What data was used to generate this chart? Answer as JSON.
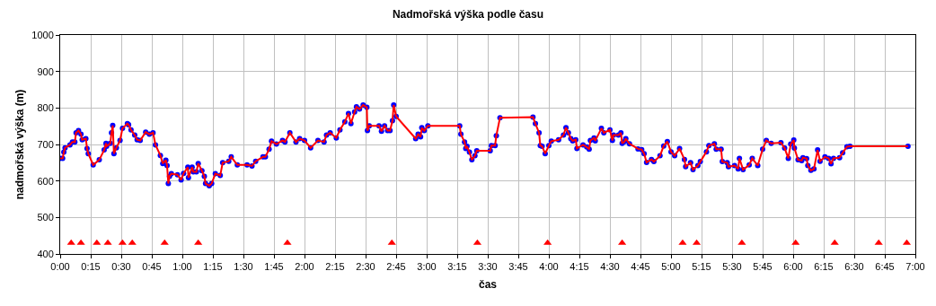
{
  "chart_data": {
    "type": "line",
    "title": "Nadmořská výška podle času",
    "xlabel": "čas",
    "ylabel": "nadmořská výška (m)",
    "xlim": [
      0,
      7
    ],
    "ylim": [
      400,
      1000
    ],
    "xticks": [
      {
        "value": 0,
        "label": "0:00"
      },
      {
        "value": 0.25,
        "label": "0:15"
      },
      {
        "value": 0.5,
        "label": "0:30"
      },
      {
        "value": 0.75,
        "label": "0:45"
      },
      {
        "value": 1,
        "label": "1:00"
      },
      {
        "value": 1.25,
        "label": "1:15"
      },
      {
        "value": 1.5,
        "label": "1:30"
      },
      {
        "value": 1.75,
        "label": "1:45"
      },
      {
        "value": 2,
        "label": "2:00"
      },
      {
        "value": 2.25,
        "label": "2:15"
      },
      {
        "value": 2.5,
        "label": "2:30"
      },
      {
        "value": 2.75,
        "label": "2:45"
      },
      {
        "value": 3,
        "label": "3:00"
      },
      {
        "value": 3.25,
        "label": "3:15"
      },
      {
        "value": 3.5,
        "label": "3:30"
      },
      {
        "value": 3.75,
        "label": "3:45"
      },
      {
        "value": 4,
        "label": "4:00"
      },
      {
        "value": 4.25,
        "label": "4:15"
      },
      {
        "value": 4.5,
        "label": "4:30"
      },
      {
        "value": 4.75,
        "label": "4:45"
      },
      {
        "value": 5,
        "label": "5:00"
      },
      {
        "value": 5.25,
        "label": "5:15"
      },
      {
        "value": 5.5,
        "label": "5:30"
      },
      {
        "value": 5.75,
        "label": "5:45"
      },
      {
        "value": 6,
        "label": "6:00"
      },
      {
        "value": 6.25,
        "label": "6:15"
      },
      {
        "value": 6.5,
        "label": "6:30"
      },
      {
        "value": 6.75,
        "label": "6:45"
      },
      {
        "value": 7,
        "label": "7:00"
      }
    ],
    "yticks": [
      400,
      500,
      600,
      700,
      800,
      900,
      1000
    ],
    "grid": true,
    "series": [
      {
        "type": "line",
        "color": "#ff0000",
        "marker": "circle",
        "line_style": "solid",
        "colors": [
          "#0000ff",
          "#0000ff",
          "#0000ff",
          "#0000ff",
          "#0000ff",
          "#0000ff",
          "#0000ff",
          "#0000ff",
          "#0000ff",
          "#0000ff",
          "#0000ff",
          "#0000ff",
          "#0000ff",
          "#0000ff",
          "#0000ff",
          "#0000ff",
          "#0000ff",
          "#0000ff",
          "#0000ff",
          "#0000ff",
          "#0000ff",
          "#0000ff",
          "#0000ff",
          "#0000ff",
          "#0000ff",
          "#0000ff",
          "#0000ff",
          "#0000ff",
          "#0000ff",
          "#0000ff",
          "#0000ff",
          "#0000ff",
          "#0000ff",
          "#0000ff",
          "#0000ff",
          "#0000ff",
          "#0000ff",
          "#0000ff",
          "#0000ff",
          "#0000ff",
          "#0000ff",
          "#0000ff",
          "#0000ff",
          "#0000ff",
          "#0000ff",
          "#0000ff",
          "#0000ff",
          "#0000ff",
          "#0000ff",
          "#0000ff",
          "#0000ff",
          "#0000ff",
          "#0000ff",
          "#0000ff",
          "#0000ff",
          "#0000ff",
          "#0000ff",
          "#0000ff",
          "#0000ff",
          "#0000ff",
          "#0000ff",
          "#0000ff",
          "#0000ff",
          "#0000ff",
          "#0000ff",
          "#0000ff",
          "#0000ff",
          "#0000ff",
          "#0000ff",
          "#0000ff",
          "#0000ff",
          "#0000ff",
          "#0000ff",
          "#0000ff",
          "#0000ff",
          "#0000ff",
          "#0000ff",
          "#0000ff",
          "#0000ff",
          "#0000ff",
          "#0000ff",
          "#0000ff",
          "#0000ff",
          "#0000ff",
          "#0000ff",
          "#0000ff",
          "#0000ff",
          "#0000ff",
          "#0000ff",
          "#0000ff",
          "#0000ff",
          "#0000ff",
          "#0000ff",
          "#0000ff",
          "#0000ff",
          "#0000ff",
          "#0000ff",
          "#0000ff",
          "#0000ff",
          "#0000ff",
          "#0000ff",
          "#0000ff",
          "#0000ff",
          "#0000ff",
          "#0000ff",
          "#0000ff",
          "#0000ff",
          "#0000ff",
          "#0000ff",
          "#0000ff",
          "#0000ff",
          "#0000ff",
          "#0000ff",
          "#0000ff",
          "#0000ff",
          "#0000ff",
          "#0000ff",
          "#0000ff",
          "#0000ff",
          "#0000ff",
          "#0000ff",
          "#0000ff",
          "#0000ff",
          "#0000ff",
          "#0000ff",
          "#0000ff",
          "#0000ff",
          "#0000ff",
          "#0000ff",
          "#0000ff",
          "#0000ff",
          "#0000ff",
          "#0000ff",
          "#0000ff",
          "#0000ff",
          "#0000ff",
          "#0000ff",
          "#0000ff",
          "#0000ff",
          "#0000ff",
          "#0000ff",
          "#0000ff",
          "#0000ff",
          "#0000ff",
          "#0000ff",
          "#0000ff",
          "#0000ff",
          "#0000ff",
          "#0000ff",
          "#0000ff",
          "#0000ff",
          "#0000ff",
          "#0000ff",
          "#0000ff",
          "#0000ff",
          "#0000ff",
          "#0000ff",
          "#0000ff",
          "#0000ff",
          "#0000ff",
          "#0000ff",
          "#0000ff",
          "#0000ff",
          "#0000ff",
          "#0000ff",
          "#0000ff",
          "#0000ff",
          "#0000ff",
          "#0000ff",
          "#0000ff",
          "#0000ff",
          "#0000ff",
          "#0000ff",
          "#0000ff",
          "#0000ff",
          "#0000ff",
          "#0000ff",
          "#0000ff",
          "#0000ff",
          "#0000ff",
          "#0000ff",
          "#0000ff",
          "#0000ff",
          "#0000ff",
          "#0000ff",
          "#0000ff",
          "#0000ff",
          "#0000ff",
          "#0000ff",
          "#0000ff",
          "#0000ff",
          "#0000ff",
          "#0000ff",
          "#0000ff",
          "#0000ff",
          "#0000ff",
          "#0000ff",
          "#0000ff",
          "#0000ff",
          "#0000ff",
          "#0000ff",
          "#0000ff",
          "#0000ff",
          "#0000ff",
          "#0000ff",
          "#0000ff",
          "#0000ff",
          "#0000ff",
          "#0000ff",
          "#0000ff",
          "#0000ff",
          "#0000ff",
          "#0000ff",
          "#0000ff",
          "#0000ff"
        ],
        "x": [
          0,
          0.02,
          0.03,
          0.04,
          0.08,
          0.1,
          0.12,
          0.13,
          0.15,
          0.17,
          0.18,
          0.21,
          0.22,
          0.23,
          0.27,
          0.32,
          0.36,
          0.375,
          0.38,
          0.41,
          0.42,
          0.43,
          0.44,
          0.46,
          0.49,
          0.51,
          0.55,
          0.56,
          0.58,
          0.61,
          0.63,
          0.655,
          0.7,
          0.73,
          0.76,
          0.78,
          0.82,
          0.84,
          0.865,
          0.875,
          0.885,
          0.895,
          0.91,
          0.96,
          0.99,
          1.01,
          1.045,
          1.05,
          1.08,
          1.09,
          1.115,
          1.13,
          1.16,
          1.18,
          1.19,
          1.22,
          1.24,
          1.27,
          1.31,
          1.33,
          1.38,
          1.4,
          1.45,
          1.53,
          1.57,
          1.6,
          1.66,
          1.68,
          1.71,
          1.73,
          1.77,
          1.82,
          1.84,
          1.88,
          1.93,
          1.96,
          2,
          2.05,
          2.11,
          2.16,
          2.18,
          2.21,
          2.26,
          2.29,
          2.33,
          2.36,
          2.38,
          2.41,
          2.425,
          2.45,
          2.48,
          2.51,
          2.515,
          2.53,
          2.61,
          2.63,
          2.655,
          2.68,
          2.7,
          2.72,
          2.73,
          2.75,
          2.91,
          2.93,
          2.95,
          2.96,
          2.98,
          3.01,
          3.27,
          3.28,
          3.31,
          3.32,
          3.33,
          3.35,
          3.37,
          3.395,
          3.41,
          3.52,
          3.53,
          3.56,
          3.57,
          3.6,
          3.87,
          3.89,
          3.92,
          3.93,
          3.945,
          3.97,
          4,
          4.02,
          4.08,
          4.12,
          4.14,
          4.16,
          4.18,
          4.195,
          4.22,
          4.23,
          4.28,
          4.31,
          4.33,
          4.34,
          4.37,
          4.38,
          4.43,
          4.45,
          4.5,
          4.52,
          4.53,
          4.57,
          4.59,
          4.6,
          4.62,
          4.63,
          4.66,
          4.73,
          4.76,
          4.78,
          4.8,
          4.84,
          4.86,
          4.91,
          4.94,
          4.97,
          5,
          5.03,
          5.07,
          5.11,
          5.12,
          5.16,
          5.18,
          5.22,
          5.24,
          5.29,
          5.31,
          5.355,
          5.37,
          5.41,
          5.42,
          5.46,
          5.47,
          5.52,
          5.55,
          5.56,
          5.59,
          5.64,
          5.665,
          5.71,
          5.75,
          5.78,
          5.82,
          5.9,
          5.93,
          5.96,
          5.98,
          6.005,
          6.01,
          6.04,
          6.07,
          6.08,
          6.11,
          6.12,
          6.145,
          6.17,
          6.2,
          6.22,
          6.26,
          6.29,
          6.31,
          6.33,
          6.38,
          6.405,
          6.44,
          6.465,
          6.94
        ],
        "values": [
          662,
          662,
          679,
          691,
          699,
          707,
          707,
          732,
          738,
          728,
          713,
          716,
          689,
          675,
          644,
          658,
          685,
          703,
          695,
          703,
          732,
          752,
          675,
          691,
          711,
          744,
          757,
          754,
          740,
          726,
          713,
          711,
          734,
          728,
          732,
          699,
          670,
          648,
          657,
          642,
          593,
          613,
          620,
          617,
          603,
          621,
          638,
          609,
          638,
          625,
          625,
          648,
          628,
          613,
          593,
          587,
          593,
          620,
          615,
          650,
          654,
          666,
          644,
          644,
          641,
          654,
          666,
          666,
          687,
          709,
          701,
          711,
          707,
          732,
          707,
          716,
          711,
          691,
          711,
          707,
          726,
          732,
          718,
          740,
          762,
          785,
          757,
          789,
          803,
          797,
          808,
          802,
          738,
          751,
          751,
          736,
          751,
          738,
          738,
          765,
          808,
          777,
          716,
          728,
          721,
          746,
          738,
          751,
          751,
          728,
          707,
          689,
          695,
          679,
          658,
          669,
          683,
          683,
          697,
          697,
          724,
          773,
          775,
          757,
          732,
          697,
          695,
          675,
          697,
          709,
          713,
          726,
          746,
          732,
          716,
          710,
          713,
          689,
          699,
          693,
          687,
          711,
          718,
          710,
          744,
          732,
          740,
          711,
          726,
          726,
          732,
          703,
          708,
          716,
          702,
          688,
          686,
          675,
          651,
          659,
          653,
          669,
          696,
          708,
          680,
          669,
          689,
          659,
          639,
          650,
          631,
          642,
          653,
          680,
          697,
          702,
          687,
          687,
          653,
          650,
          639,
          642,
          633,
          662,
          631,
          644,
          662,
          642,
          687,
          711,
          703,
          705,
          690,
          662,
          701,
          712,
          690,
          658,
          656,
          664,
          661,
          642,
          629,
          633,
          685,
          654,
          666,
          662,
          647,
          662,
          664,
          677,
          694,
          695,
          695
        ]
      },
      {
        "type": "scatter",
        "color": "#ff0000",
        "marker": "triangle",
        "x": [
          0.09,
          0.17,
          0.3,
          0.39,
          0.51,
          0.59,
          0.855,
          1.13,
          1.86,
          2.715,
          3.415,
          3.99,
          4.6,
          5.095,
          5.21,
          5.58,
          6.02,
          6.34,
          6.7,
          6.93
        ],
        "values": [
          430,
          430,
          430,
          430,
          430,
          430,
          430,
          430,
          430,
          430,
          430,
          430,
          430,
          430,
          430,
          430,
          430,
          430,
          430,
          430
        ]
      }
    ]
  }
}
